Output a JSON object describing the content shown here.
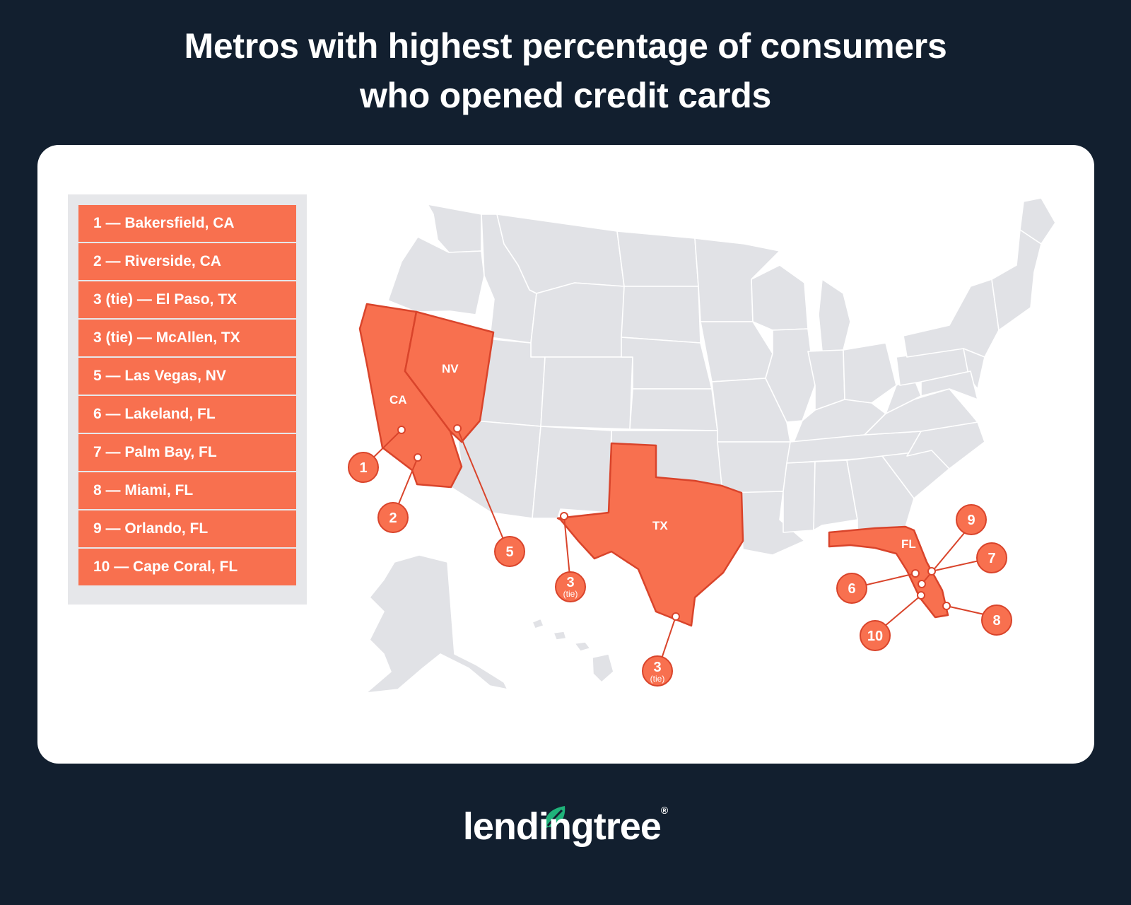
{
  "title": {
    "line1": "Metros with highest percentage of consumers",
    "line2": "who opened credit cards"
  },
  "legend": [
    "1 — Bakersfield, CA",
    "2 — Riverside, CA",
    "3 (tie) — El Paso, TX",
    "3 (tie) — McAllen, TX",
    "5 — Las Vegas, NV",
    "6 — Lakeland, FL",
    "7 — Palm Bay, FL",
    "8 — Miami, FL",
    "9 — Orlando, FL",
    "10 — Cape Coral, FL"
  ],
  "highlighted_states": [
    "CA",
    "NV",
    "TX",
    "FL"
  ],
  "pins": [
    {
      "num": "1",
      "sub": ""
    },
    {
      "num": "2",
      "sub": ""
    },
    {
      "num": "3",
      "sub": "(tie)"
    },
    {
      "num": "3",
      "sub": "(tie)"
    },
    {
      "num": "5",
      "sub": ""
    },
    {
      "num": "6",
      "sub": ""
    },
    {
      "num": "7",
      "sub": ""
    },
    {
      "num": "8",
      "sub": ""
    },
    {
      "num": "9",
      "sub": ""
    },
    {
      "num": "10",
      "sub": ""
    }
  ],
  "colors": {
    "background": "#121f2f",
    "card": "#ffffff",
    "highlight": "#f8704f",
    "highlight_stroke": "#d9442b",
    "land": "#e1e2e6",
    "brand_leaf": "#1fb37a"
  },
  "brand": {
    "name": "lendingtree",
    "mark": "®"
  }
}
